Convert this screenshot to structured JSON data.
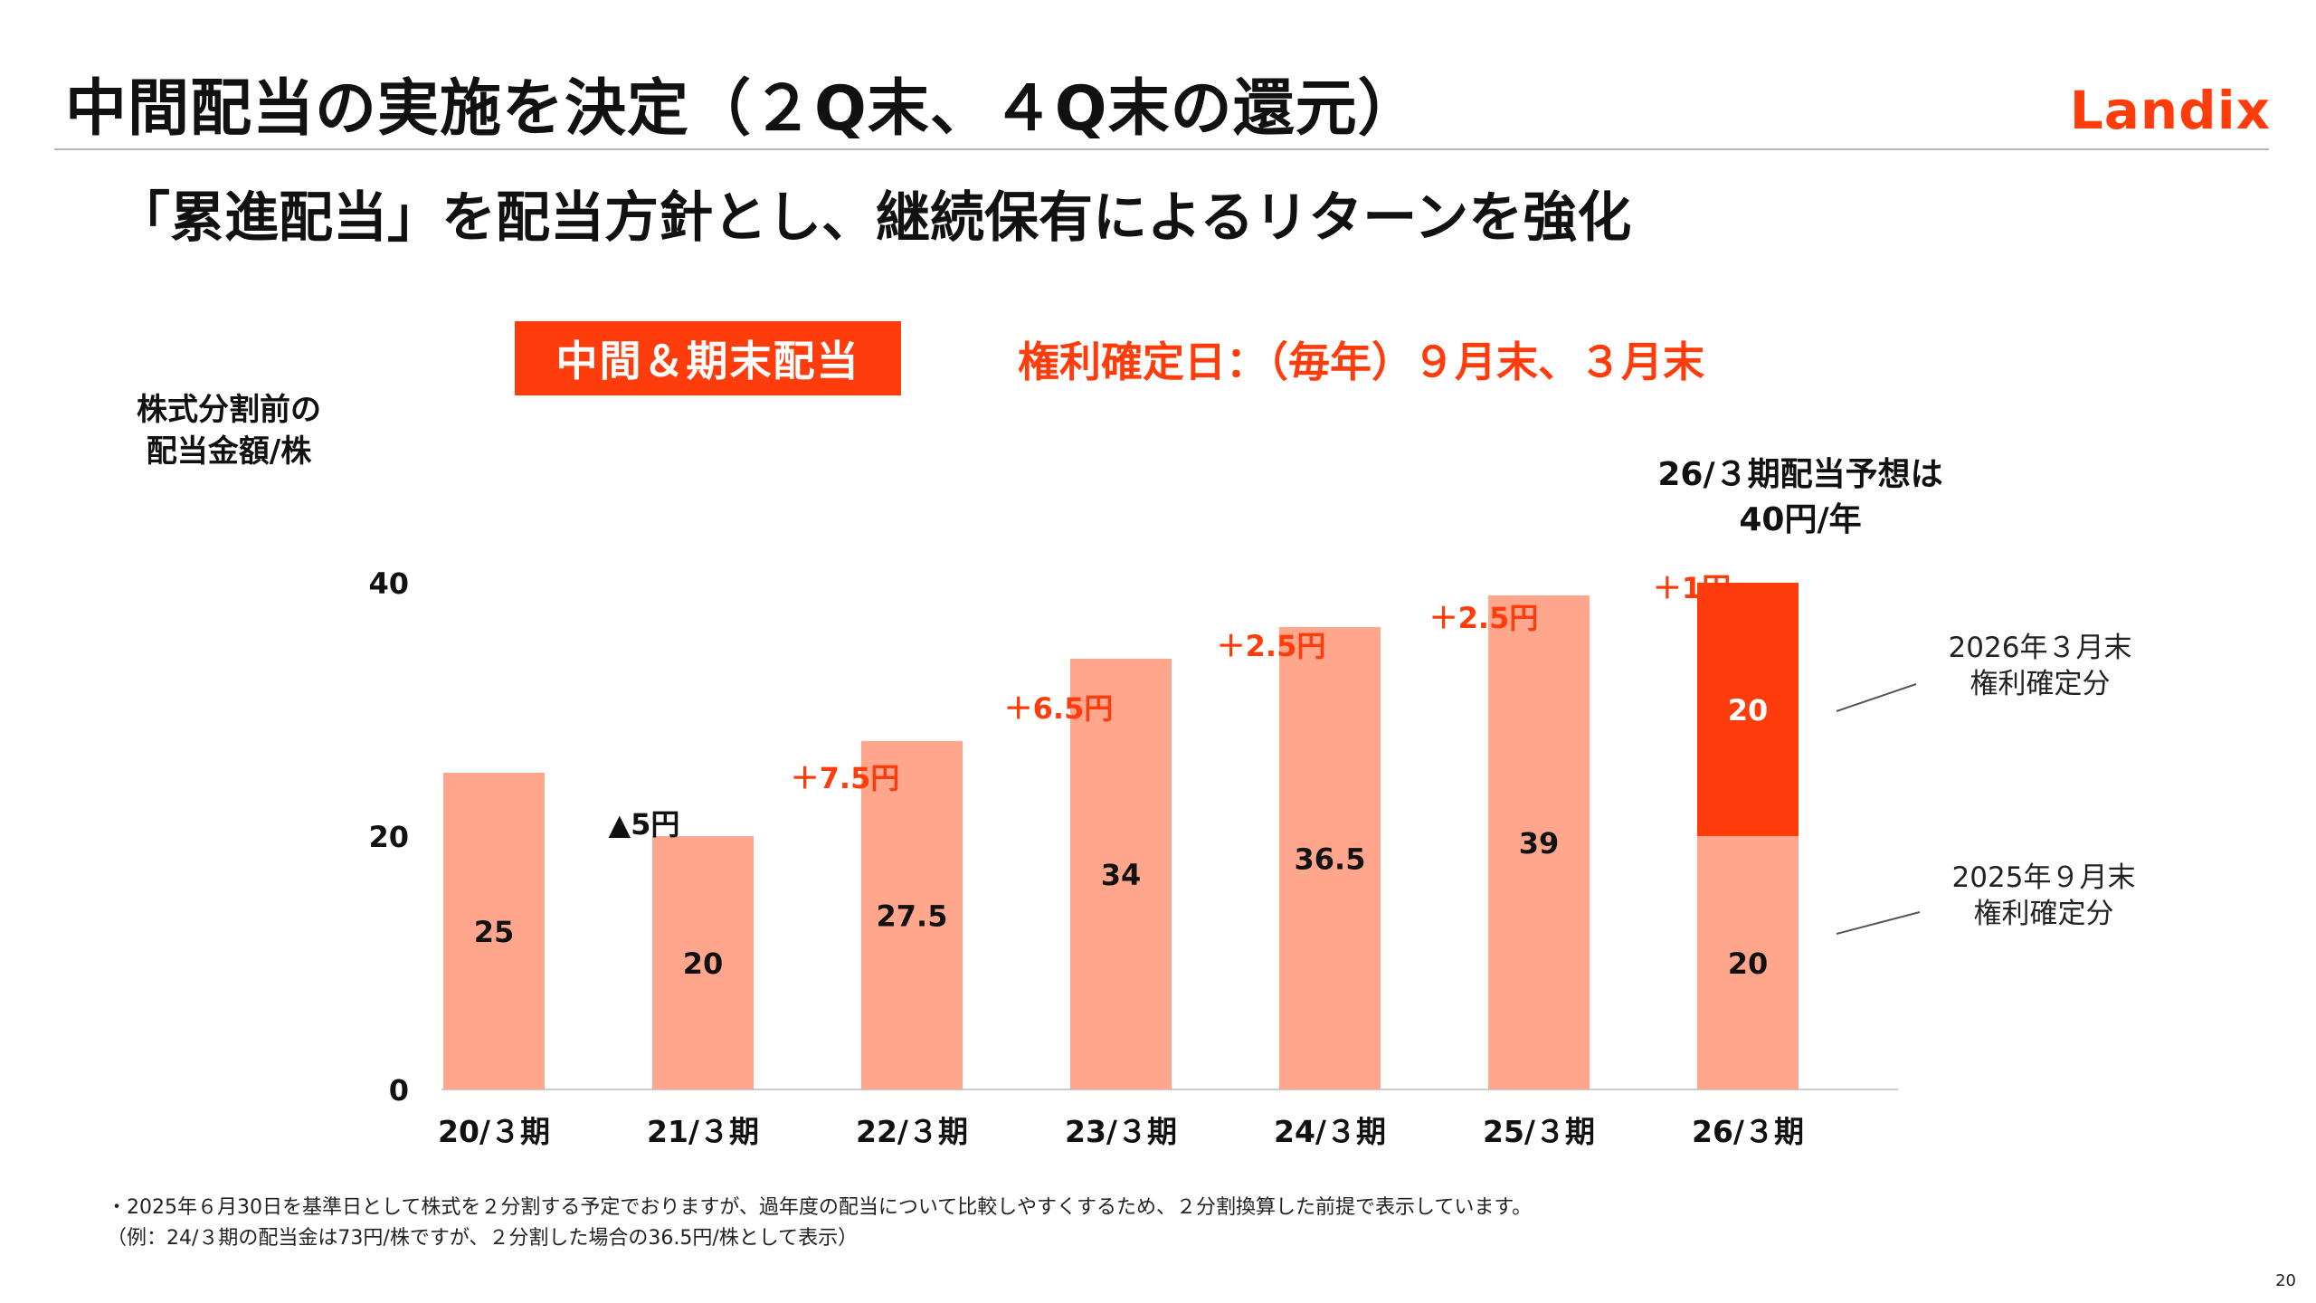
{
  "header": {
    "title": "中間配当の実施を決定（２Q末、４Q末の還元）",
    "logo_text": "Landix",
    "subtitle": "「累進配当」を配当方針とし、継続保有によるリターンを強化"
  },
  "badge_label": "中間＆期末配当",
  "record_date_text": "権利確定日：（毎年）９月末、３月末",
  "y_axis_label": [
    "株式分割前の",
    "配当金額/株"
  ],
  "forecast_text": [
    "26/３期配当予想は",
    "40円/年"
  ],
  "callouts": {
    "upper": [
      "2026年３月末",
      "権利確定分"
    ],
    "lower": [
      "2025年９月末",
      "権利確定分"
    ]
  },
  "chart_data": {
    "type": "bar",
    "stacked": true,
    "categories": [
      "20/３期",
      "21/３期",
      "22/３期",
      "23/３期",
      "24/３期",
      "25/３期",
      "26/３期"
    ],
    "series": [
      {
        "name": "base",
        "values": [
          25,
          20,
          27.5,
          34,
          36.5,
          39,
          20
        ],
        "labels": [
          "25",
          "20",
          "27.5",
          "34",
          "36.5",
          "39",
          "20"
        ]
      },
      {
        "name": "2026年３月末権利確定分",
        "values": [
          0,
          0,
          0,
          0,
          0,
          0,
          20
        ],
        "labels": [
          "",
          "",
          "",
          "",
          "",
          "",
          "20"
        ]
      }
    ],
    "changes": [
      "▲5円",
      "＋7.5円",
      "＋6.5円",
      "＋2.5円",
      "＋2.5円",
      "＋1円"
    ],
    "y_ticks": [
      "0",
      "20",
      "40"
    ],
    "ylim": [
      0,
      40
    ],
    "colors": {
      "bar": "#ffa68c",
      "highlight": "#ff3d0c",
      "accent": "#ff3d0c",
      "axis": "#cccccc"
    }
  },
  "footnotes": [
    "・2025年６月30日を基準日として株式を２分割する予定でおりますが、過年度の配当について比較しやすくするため、２分割換算した前提で表示しています。",
    "（例：24/３期の配当金は73円/株ですが、２分割した場合の36.5円/株として表示）"
  ],
  "page_number": "20"
}
